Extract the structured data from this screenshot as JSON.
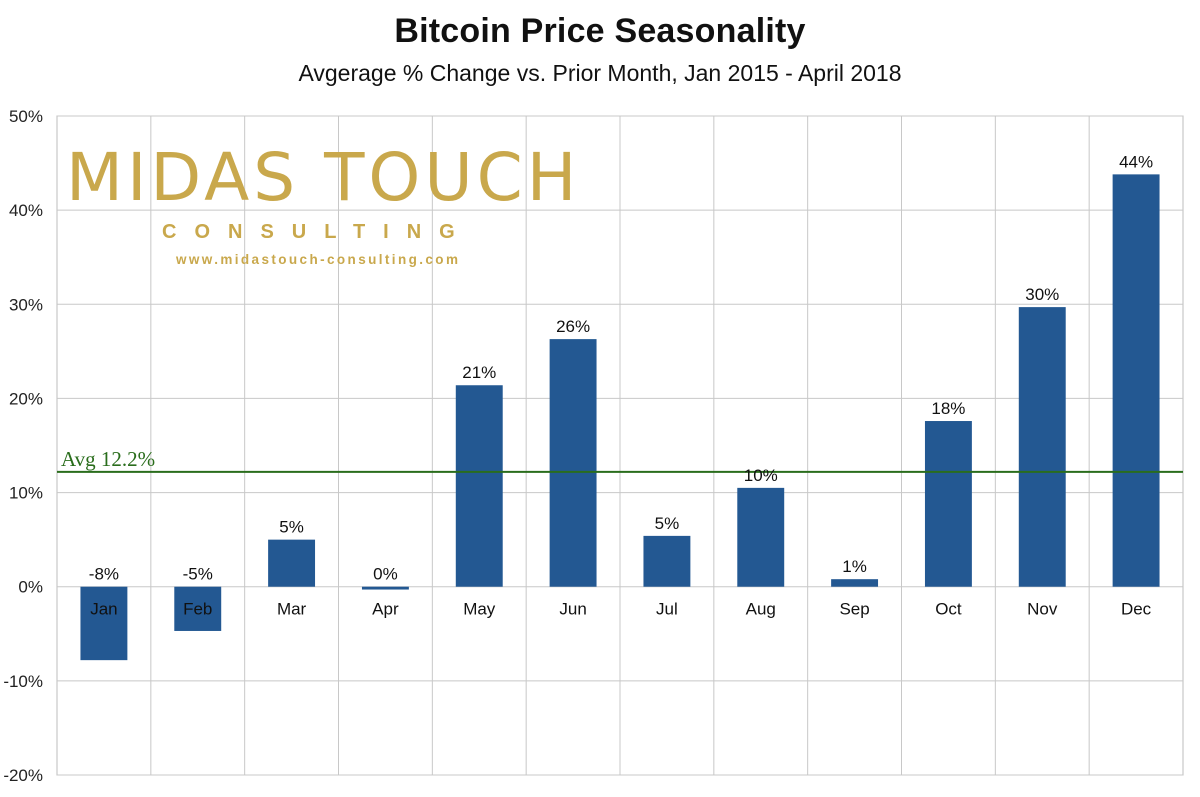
{
  "chart_data": {
    "type": "bar",
    "title": "Bitcoin Price Seasonality",
    "subtitle": "Avgerage % Change vs. Prior Month, Jan 2015 - April 2018",
    "xlabel": "",
    "ylabel": "",
    "categories": [
      "Jan",
      "Feb",
      "Mar",
      "Apr",
      "May",
      "Jun",
      "Jul",
      "Aug",
      "Sep",
      "Oct",
      "Nov",
      "Dec"
    ],
    "values": [
      -7.8,
      -4.7,
      5.0,
      -0.3,
      21.4,
      26.3,
      5.4,
      10.5,
      0.8,
      17.6,
      29.7,
      43.8
    ],
    "data_labels": [
      "-8%",
      "-5%",
      "5%",
      "0%",
      "21%",
      "26%",
      "5%",
      "10%",
      "1%",
      "18%",
      "30%",
      "44%"
    ],
    "ylim": [
      -20,
      50
    ],
    "yticks": [
      50,
      40,
      30,
      20,
      10,
      0,
      -10,
      -20
    ],
    "ytick_labels": [
      "50%",
      "40%",
      "30%",
      "20%",
      "10%",
      "0%",
      "-10%",
      "-20%"
    ],
    "grid": true,
    "bar_color": "#235892",
    "reference_line": {
      "value": 12.2,
      "label": "Avg  12.2%",
      "color": "#2a6d1c"
    }
  },
  "watermark": {
    "line1": "MIDAS TOUCH",
    "line2": "CONSULTING",
    "url": "www.midastouch-consulting.com",
    "color": "#c9a84c"
  }
}
